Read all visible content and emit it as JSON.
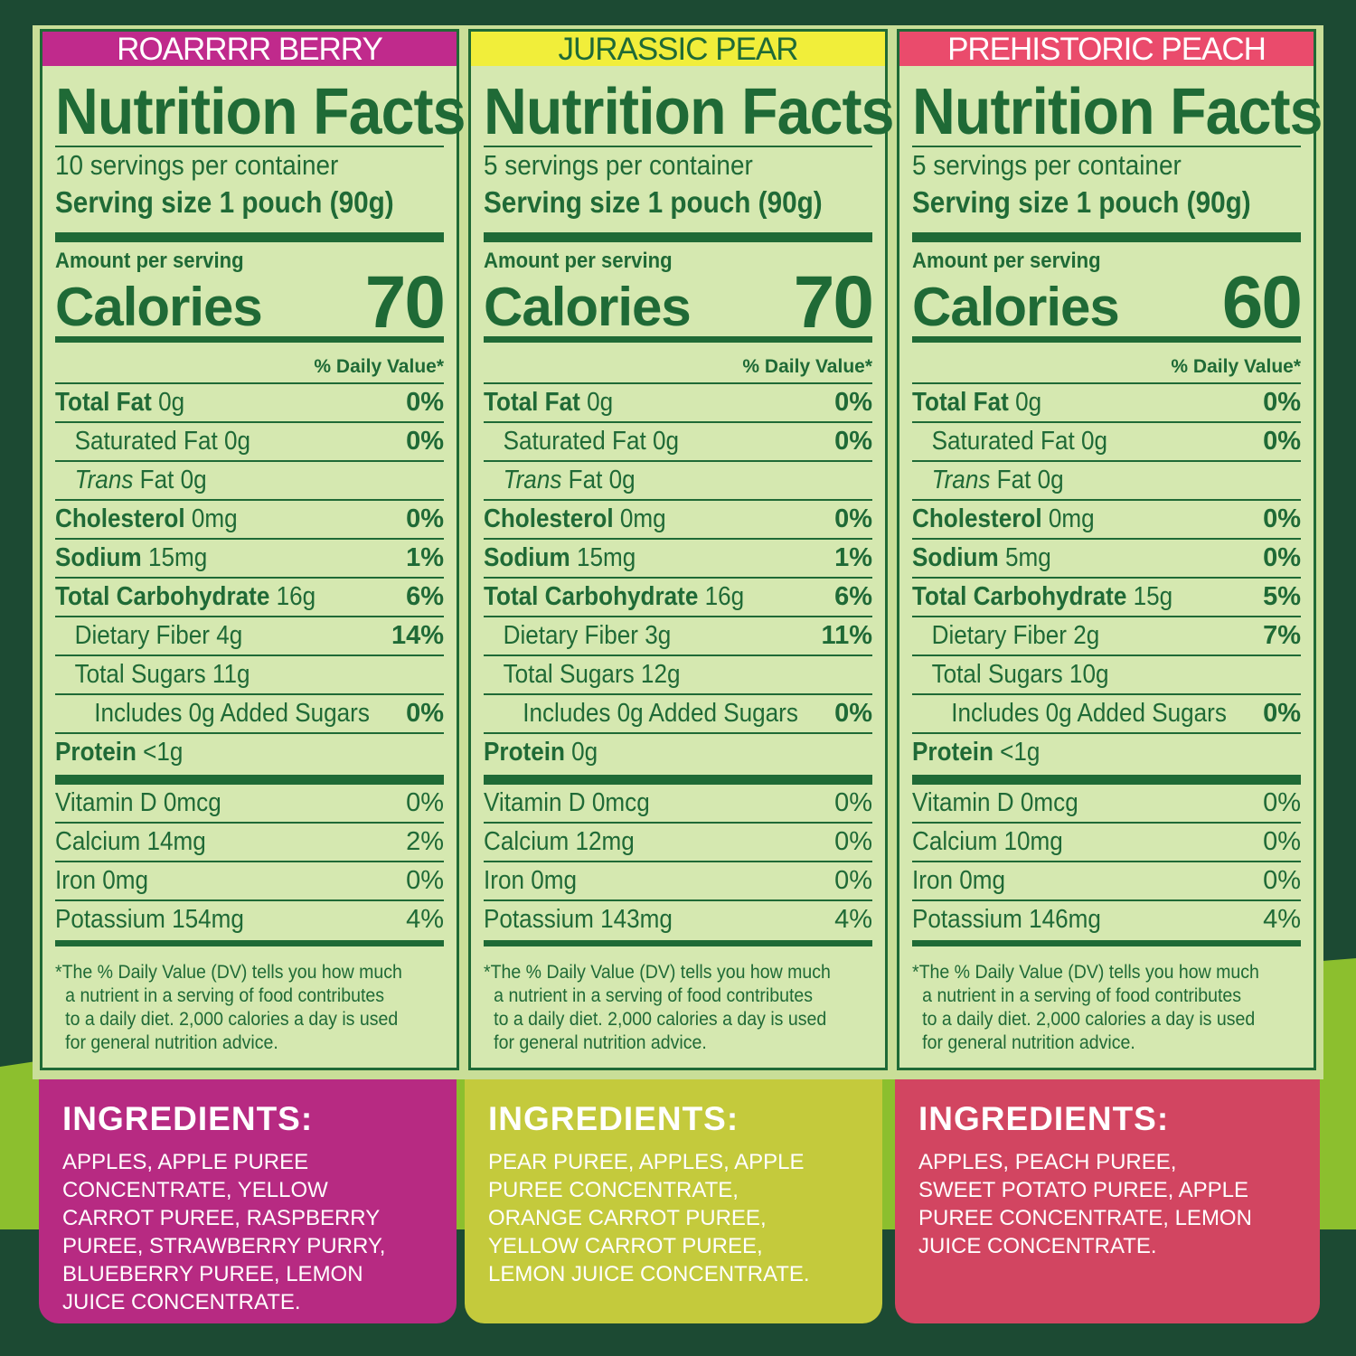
{
  "colors": {
    "background": "#1c4a33",
    "label_green": "#1f6a36",
    "label_bg": "#d5e8b0"
  },
  "labels": [
    {
      "flavor": "ROARRRR BERRY",
      "flavor_bg": "#c02a8c",
      "flavor_color": "#ffffff",
      "title": "Nutrition Facts",
      "servings": "10 servings per container",
      "serving_size": "Serving size 1 pouch (90g)",
      "amount_per_serving": "Amount per serving",
      "calories_label": "Calories",
      "calories": "70",
      "dv_header": "% Daily Value*",
      "total_fat_label": "Total Fat",
      "total_fat": "0g",
      "total_fat_dv": "0%",
      "sat_fat": "Saturated Fat 0g",
      "sat_fat_dv": "0%",
      "trans_label": "Trans",
      "trans_rest": "Fat 0g",
      "chol_label": "Cholesterol",
      "chol": "0mg",
      "chol_dv": "0%",
      "sodium_label": "Sodium",
      "sodium": "15mg",
      "sodium_dv": "1%",
      "carb_label": "Total Carbohydrate",
      "carb": "16g",
      "carb_dv": "6%",
      "fiber": "Dietary Fiber 4g",
      "fiber_dv": "14%",
      "sugars": "Total Sugars 11g",
      "added_sugars": "Includes 0g Added Sugars",
      "added_sugars_dv": "0%",
      "protein_label": "Protein",
      "protein": "<1g",
      "vit_d": "Vitamin D 0mcg",
      "vit_d_dv": "0%",
      "calcium": "Calcium 14mg",
      "calcium_dv": "2%",
      "iron": "Iron 0mg",
      "iron_dv": "0%",
      "potassium": "Potassium 154mg",
      "potassium_dv": "4%",
      "foot1": "*The % Daily Value (DV) tells you how much",
      "foot2": "a nutrient in a serving of food contributes",
      "foot3": "to a daily diet. 2,000 calories a day is used",
      "foot4": "for general nutrition advice.",
      "ingredients_title": "INGREDIENTS:",
      "ingredients_bg": "#b72a82",
      "ingredients": "APPLES, APPLE PUREE\nCONCENTRATE, YELLOW\nCARROT PUREE, RASPBERRY\nPUREE, STRAWBERRY PURRY,\nBLUEBERRY PUREE, LEMON\nJUICE CONCENTRATE."
    },
    {
      "flavor": "JURASSIC PEAR",
      "flavor_bg": "#f1ee3a",
      "flavor_color": "#1f6a36",
      "title": "Nutrition Facts",
      "servings": "5 servings per container",
      "serving_size": "Serving size 1 pouch (90g)",
      "amount_per_serving": "Amount per serving",
      "calories_label": "Calories",
      "calories": "70",
      "dv_header": "% Daily Value*",
      "total_fat_label": "Total Fat",
      "total_fat": "0g",
      "total_fat_dv": "0%",
      "sat_fat": "Saturated Fat 0g",
      "sat_fat_dv": "0%",
      "trans_label": "Trans",
      "trans_rest": "Fat 0g",
      "chol_label": "Cholesterol",
      "chol": "0mg",
      "chol_dv": "0%",
      "sodium_label": "Sodium",
      "sodium": "15mg",
      "sodium_dv": "1%",
      "carb_label": "Total Carbohydrate",
      "carb": "16g",
      "carb_dv": "6%",
      "fiber": "Dietary Fiber 3g",
      "fiber_dv": "11%",
      "sugars": "Total Sugars 12g",
      "added_sugars": "Includes 0g Added Sugars",
      "added_sugars_dv": "0%",
      "protein_label": "Protein",
      "protein": "0g",
      "vit_d": "Vitamin D 0mcg",
      "vit_d_dv": "0%",
      "calcium": "Calcium 12mg",
      "calcium_dv": "0%",
      "iron": "Iron 0mg",
      "iron_dv": "0%",
      "potassium": "Potassium 143mg",
      "potassium_dv": "4%",
      "foot1": "*The % Daily Value (DV) tells you how much",
      "foot2": "a nutrient in a serving of food contributes",
      "foot3": "to a daily diet. 2,000 calories a day is used",
      "foot4": "for general nutrition advice.",
      "ingredients_title": "INGREDIENTS:",
      "ingredients_bg": "#c4ca3c",
      "ingredients": "PEAR PUREE, APPLES, APPLE\nPUREE CONCENTRATE,\nORANGE CARROT PUREE,\nYELLOW CARROT PUREE,\nLEMON JUICE CONCENTRATE."
    },
    {
      "flavor": "PREHISTORIC PEACH",
      "flavor_bg": "#ea4b6c",
      "flavor_color": "#ffffff",
      "title": "Nutrition Facts",
      "servings": "5 servings per container",
      "serving_size": "Serving size 1 pouch (90g)",
      "amount_per_serving": "Amount per serving",
      "calories_label": "Calories",
      "calories": "60",
      "dv_header": "% Daily Value*",
      "total_fat_label": "Total Fat",
      "total_fat": "0g",
      "total_fat_dv": "0%",
      "sat_fat": "Saturated Fat 0g",
      "sat_fat_dv": "0%",
      "trans_label": "Trans",
      "trans_rest": "Fat 0g",
      "chol_label": "Cholesterol",
      "chol": "0mg",
      "chol_dv": "0%",
      "sodium_label": "Sodium",
      "sodium": "5mg",
      "sodium_dv": "0%",
      "carb_label": "Total Carbohydrate",
      "carb": "15g",
      "carb_dv": "5%",
      "fiber": "Dietary Fiber 2g",
      "fiber_dv": "7%",
      "sugars": "Total Sugars 10g",
      "added_sugars": "Includes 0g Added Sugars",
      "added_sugars_dv": "0%",
      "protein_label": "Protein",
      "protein": "<1g",
      "vit_d": "Vitamin D 0mcg",
      "vit_d_dv": "0%",
      "calcium": "Calcium 10mg",
      "calcium_dv": "0%",
      "iron": "Iron 0mg",
      "iron_dv": "0%",
      "potassium": "Potassium 146mg",
      "potassium_dv": "4%",
      "foot1": "*The % Daily Value (DV) tells you how much",
      "foot2": "a nutrient in a serving of food contributes",
      "foot3": "to a daily diet. 2,000 calories a day is used",
      "foot4": "for general nutrition advice.",
      "ingredients_title": "INGREDIENTS:",
      "ingredients_bg": "#d24561",
      "ingredients": "APPLES, PEACH PUREE,\nSWEET POTATO PUREE, APPLE\nPUREE CONCENTRATE, LEMON\nJUICE CONCENTRATE."
    }
  ]
}
